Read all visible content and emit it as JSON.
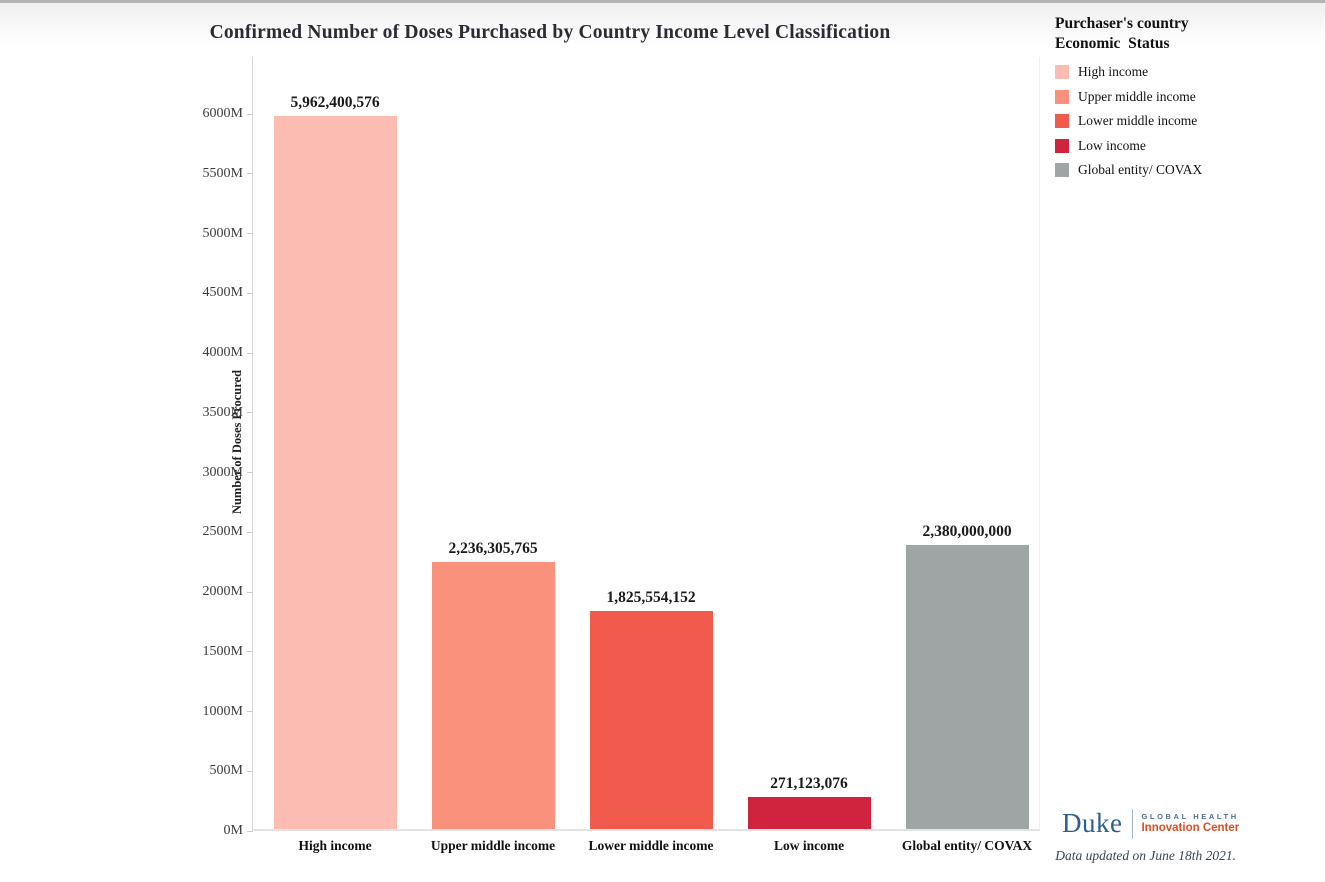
{
  "title": "Confirmed Number of Doses Purchased by Country Income Level Classification",
  "chart_data": {
    "type": "bar",
    "title": "Confirmed Number of Doses Purchased by Country Income Level Classification",
    "xlabel": "",
    "ylabel": "Number of Doses Procured",
    "ylim_millions": [
      0,
      6000
    ],
    "y_tick_step_millions": 500,
    "y_tick_labels": [
      "0M",
      "500M",
      "1000M",
      "1500M",
      "2000M",
      "2500M",
      "3000M",
      "3500M",
      "4000M",
      "4500M",
      "5000M",
      "5500M",
      "6000M"
    ],
    "grid": "off",
    "legend_position": "top-right",
    "categories": [
      "High income",
      "Upper middle income",
      "Lower middle income",
      "Low income",
      "Global entity/ COVAX"
    ],
    "values": [
      5962400576,
      2236305765,
      1825554152,
      271123076,
      2380000000
    ],
    "value_labels": [
      "5,962,400,576",
      "2,236,305,765",
      "1,825,554,152",
      "271,123,076",
      "2,380,000,000"
    ],
    "bar_colors": [
      "#fdbcb2",
      "#f9917c",
      "#f15b4e",
      "#d0243e",
      "#9ea5a4"
    ]
  },
  "legend": {
    "title_line1": "Purchaser's country",
    "title_line2": "Economic  Status",
    "items": [
      {
        "label": "High income",
        "color": "#fdbcb2"
      },
      {
        "label": "Upper middle income",
        "color": "#f9917c"
      },
      {
        "label": "Lower middle income",
        "color": "#f15b4e"
      },
      {
        "label": "Low income",
        "color": "#d0243e"
      },
      {
        "label": "Global entity/ COVAX",
        "color": "#9ea5a4"
      }
    ]
  },
  "footer": {
    "logo_primary": "Duke",
    "logo_line1": "GLOBAL HEALTH",
    "logo_line2": "Innovation Center",
    "note": "Data updated on June 18th 2021."
  },
  "colors": {
    "title_text": "#2b2b33",
    "duke_blue": "#2d5f8a",
    "logo_orange": "#d94f26",
    "axis_line": "#d9d9d9"
  }
}
